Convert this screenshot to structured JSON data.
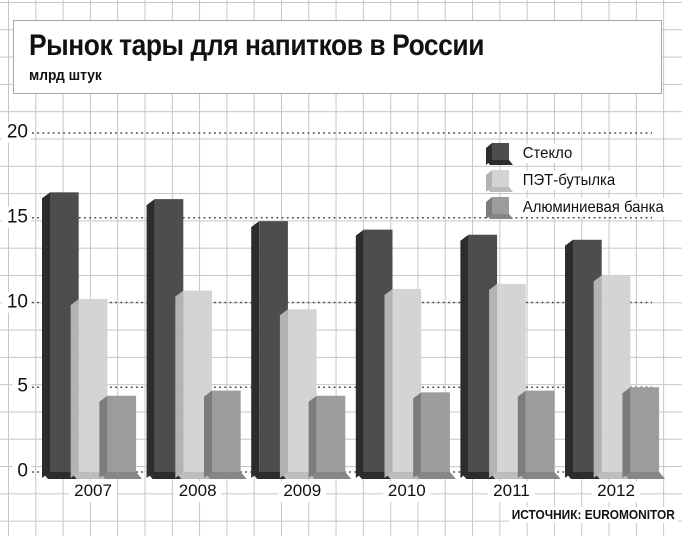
{
  "title": "Рынок тары для напитков в России",
  "units_label": "млрд штук",
  "source_label": "ИСТОЧНИК: EUROMONITOR",
  "colors": {
    "grid": "#c6c6c6",
    "dotted_line": "#4a4a4a",
    "text": "#111111",
    "title_box_border": "#a6a6a6"
  },
  "chart_data": {
    "type": "bar",
    "title": "Рынок тары для напитков в России",
    "ylabel": "млрд штук",
    "xlabel": "",
    "categories": [
      "2007",
      "2008",
      "2009",
      "2010",
      "2011",
      "2012"
    ],
    "series": [
      {
        "name": "Стекло",
        "values": [
          16.5,
          16.1,
          14.8,
          14.3,
          14.0,
          13.7
        ],
        "colors": {
          "front": "#4d4d4d",
          "side": "#2c2c2c",
          "bottom": "#2c2c2c"
        }
      },
      {
        "name": "ПЭТ-бутылка",
        "values": [
          10.2,
          10.7,
          9.6,
          10.8,
          11.1,
          11.6
        ],
        "colors": {
          "front": "#d4d4d4",
          "side": "#b3b3b3",
          "bottom": "#bdbdbd"
        }
      },
      {
        "name": "Алюминиевая банка",
        "values": [
          4.5,
          4.8,
          4.5,
          4.7,
          4.8,
          5.0
        ],
        "colors": {
          "front": "#9c9c9c",
          "side": "#7c7c7c",
          "bottom": "#868686"
        }
      }
    ],
    "yticks": [
      0,
      5,
      10,
      15,
      20
    ],
    "ylim": [
      0,
      20
    ],
    "grid": true,
    "gridline_style": "dotted",
    "legend_position": "top-right",
    "bar_style": "pseudo-3d",
    "source": "EUROMONITOR"
  }
}
